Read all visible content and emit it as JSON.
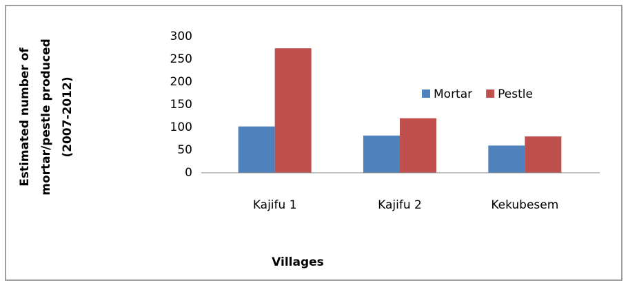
{
  "chart_data": {
    "type": "bar",
    "y_label": [
      "Estimated number of",
      "mortar/pestle produced",
      "(2007-2012)"
    ],
    "x_label": "Villages",
    "categories": [
      "Kajifu 1",
      "Kajifu 2",
      "Kekubesem"
    ],
    "series": [
      {
        "name": "Mortar",
        "color": "#4f81bd",
        "values": [
          102,
          82,
          60
        ]
      },
      {
        "name": "Pestle",
        "color": "#c0504d",
        "values": [
          274,
          120,
          80
        ]
      }
    ],
    "ylim": [
      0,
      300
    ],
    "yticks": [
      0,
      50,
      100,
      150,
      200,
      250,
      300
    ],
    "grid": false,
    "legend": "top-right"
  }
}
